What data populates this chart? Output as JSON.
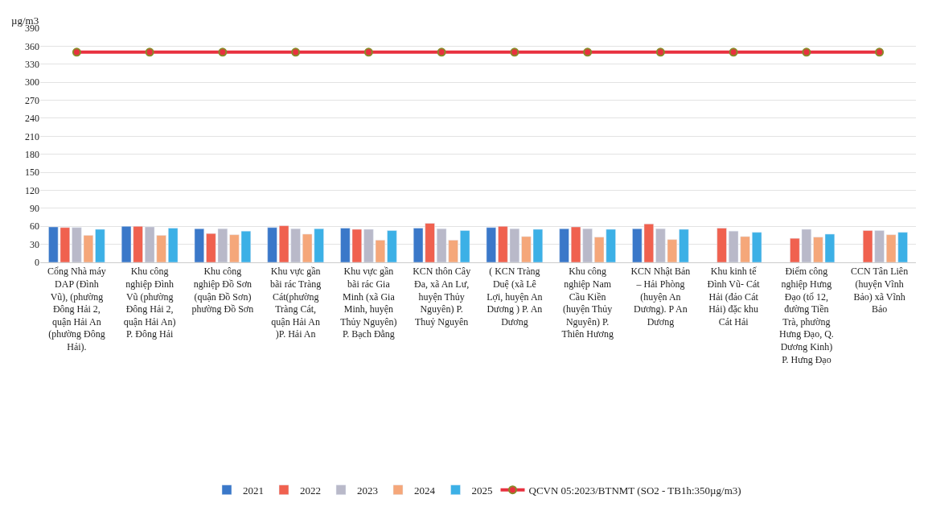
{
  "chart_data": {
    "type": "bar",
    "ylabel": "µg/m3",
    "categories": [
      "Cổng Nhà máy DAP (Đình Vũ), (phường Đông Hải 2, quận Hải An (phường Đông Hải).",
      "Khu công nghiệp Đình Vũ (phường Đông Hải 2, quận Hải An) P. Đông Hải",
      "Khu công nghiệp Đồ Sơn (quận Đồ Sơn) phường Đồ Sơn",
      "Khu vực gần bãi rác Tràng Cát(phường Tràng Cát, quận Hải An )P. Hải An",
      "Khu vực gần bãi rác Gia Minh (xã Gia Minh, huyện Thủy Nguyên) P. Bạch Đằng",
      "KCN thôn Cây Đa, xã An Lư, huyện Thủy Nguyên) P. Thuỷ Nguyên",
      "( KCN Tràng Duệ (xã Lê Lợi, huyện An Dương ) P. An Dương",
      "Khu công nghiệp Nam Cầu Kiền (huyện Thủy Nguyên) P. Thiên Hương",
      "KCN Nhật Bản – Hải Phòng (huyện An Dương). P An Dương",
      "Khu kinh tế Đình Vũ- Cát Hải (đảo Cát Hải) đặc khu Cát Hải",
      "Điểm công nghiệp Hưng Đạo (tổ 12, đường Tiền Trà, phường Hưng Đạo, Q. Dương Kinh) P. Hưng Đạo",
      "CCN Tân Liên (huyện Vĩnh Bảo) xã Vĩnh Bảo"
    ],
    "series": [
      {
        "name": "2021",
        "color": "#3a78c9",
        "values": [
          59,
          60,
          56,
          58,
          57,
          57,
          58,
          56,
          56,
          null,
          null,
          null
        ]
      },
      {
        "name": "2022",
        "color": "#f0614f",
        "values": [
          58,
          60,
          48,
          61,
          55,
          65,
          60,
          59,
          64,
          57,
          40,
          53
        ]
      },
      {
        "name": "2023",
        "color": "#b9b9c9",
        "values": [
          58,
          59,
          56,
          56,
          55,
          56,
          56,
          56,
          56,
          52,
          55,
          53
        ]
      },
      {
        "name": "2024",
        "color": "#f5a77a",
        "values": [
          45,
          45,
          46,
          47,
          37,
          37,
          43,
          42,
          38,
          43,
          42,
          46
        ]
      },
      {
        "name": "2025",
        "color": "#3cb0e6",
        "values": [
          55,
          57,
          52,
          56,
          53,
          53,
          55,
          55,
          55,
          50,
          47,
          50
        ]
      },
      {
        "name": "QCVN 05:2023/BTNMT (SO2 - TB1h:350µg/m3)",
        "type": "line",
        "color": "#e8313f",
        "marker": "circle",
        "values": [
          350,
          350,
          350,
          350,
          350,
          350,
          350,
          350,
          350,
          350,
          350,
          350
        ]
      }
    ],
    "ylim": [
      0,
      390
    ],
    "yticks": [
      0,
      30,
      60,
      90,
      120,
      150,
      180,
      210,
      240,
      270,
      300,
      330,
      360,
      390
    ],
    "grid": "y",
    "legend": "bottom"
  }
}
